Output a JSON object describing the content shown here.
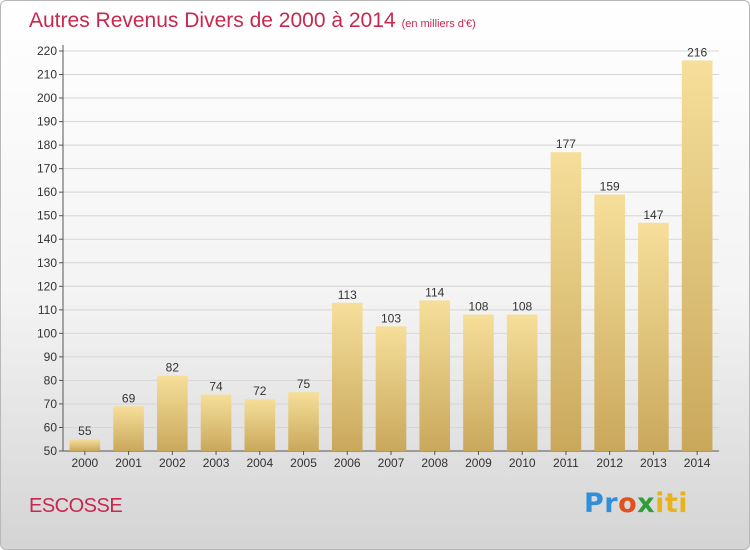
{
  "header": {
    "title": "Autres Revenus Divers de 2000 à 2014",
    "subtitle": "(en milliers d'€)"
  },
  "footer": {
    "region": "ESCOSSE",
    "logo_parts": [
      "Pr",
      "o",
      "x",
      "iti"
    ],
    "logo_colors": [
      "#2f8fd8",
      "#e2501f",
      "#2e9d3a",
      "#e9b21a"
    ]
  },
  "chart_data": {
    "type": "bar",
    "title": "Autres Revenus Divers de 2000 à 2014",
    "subtitle": "(en milliers d'€)",
    "categories": [
      "2000",
      "2001",
      "2002",
      "2003",
      "2004",
      "2005",
      "2006",
      "2007",
      "2008",
      "2009",
      "2010",
      "2011",
      "2012",
      "2013",
      "2014"
    ],
    "values": [
      55,
      69,
      82,
      74,
      72,
      75,
      113,
      103,
      114,
      108,
      108,
      177,
      159,
      147,
      216
    ],
    "ylim": [
      50,
      220
    ],
    "yticks": [
      50,
      60,
      70,
      80,
      90,
      100,
      110,
      120,
      130,
      140,
      150,
      160,
      170,
      180,
      190,
      200,
      210,
      220
    ],
    "grid": true,
    "data_labels": true,
    "bar_color_light": "#f6df9a",
    "bar_color_dark": "#c9a85c",
    "text_color": "#c8284f"
  }
}
